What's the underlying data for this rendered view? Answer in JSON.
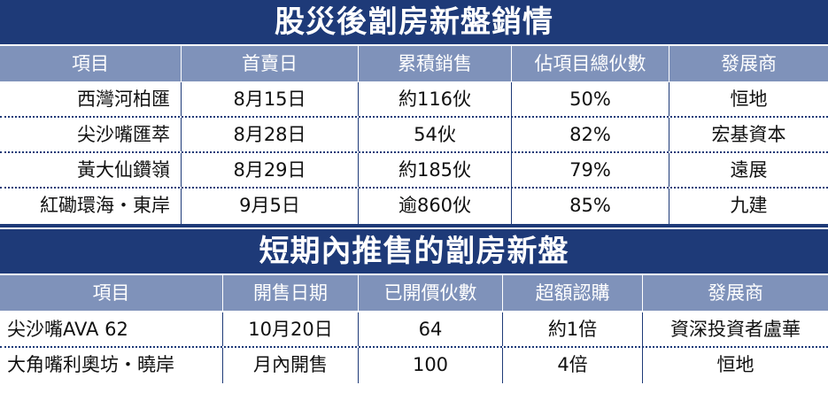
{
  "table1": {
    "title": "股災後劏房新盤銷情",
    "headers": [
      "項目",
      "首賣日",
      "累積銷售",
      "佔項目總伙數",
      "發展商"
    ],
    "rows": [
      [
        "西灣河柏匯",
        "8月15日",
        "約116伙",
        "50%",
        "恒地"
      ],
      [
        "尖沙嘴匯萃",
        "8月28日",
        "54伙",
        "82%",
        "宏基資本"
      ],
      [
        "黃大仙鑽嶺",
        "8月29日",
        "約185伙",
        "79%",
        "遠展"
      ],
      [
        "紅磡環海・東岸",
        "9月5日",
        "逾860伙",
        "85%",
        "九建"
      ]
    ]
  },
  "table2": {
    "title": "短期內推售的劏房新盤",
    "headers": [
      "項目",
      "開售日期",
      "已開價伙數",
      "超額認購",
      "發展商"
    ],
    "rows": [
      [
        "尖沙嘴AVA 62",
        "10月20日",
        "64",
        "約1倍",
        "資深投資者盧華"
      ],
      [
        "大角嘴利奧坊・曉岸",
        "月內開售",
        "100",
        "4倍",
        "恒地"
      ]
    ]
  },
  "colors": {
    "title_bg": "#1e3a78",
    "header_bg": "#7f92ba",
    "text": "#111111"
  }
}
